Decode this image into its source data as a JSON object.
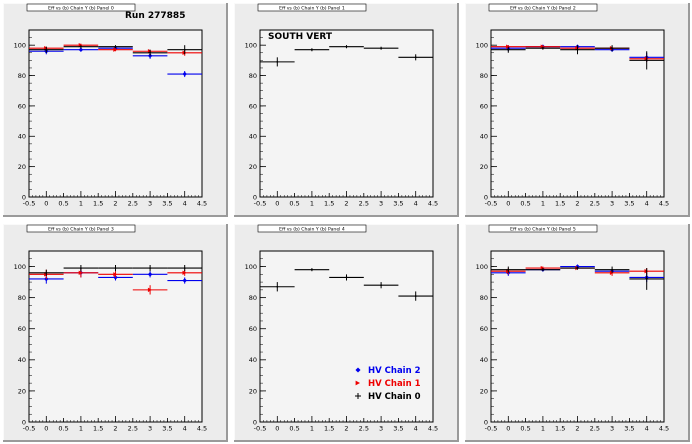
{
  "colors": {
    "background": "#ffffff",
    "pad_fill": "#ececec",
    "frame_fill": "#f4f4f4",
    "hv_chain_2": "#0000ee",
    "hv_chain_1": "#ee0000",
    "hv_chain_0": "#000000"
  },
  "chart_data": [
    {
      "type": "scatter",
      "title_strip": "Eff vs (b) Chain Y (b) Panel 0",
      "annotation": "Run 277885",
      "xlim": [
        -0.5,
        4.5
      ],
      "ylim": [
        0,
        110
      ],
      "xticks": [
        -0.5,
        0,
        0.5,
        1,
        1.5,
        2,
        2.5,
        3,
        3.5,
        4,
        4.5
      ],
      "yticks": [
        0,
        20,
        40,
        60,
        80,
        100
      ],
      "grid": false,
      "series": [
        {
          "x": [
            0,
            1,
            2,
            3,
            4
          ],
          "y": [
            96,
            97,
            98,
            93,
            81
          ],
          "yerr": [
            2,
            1,
            1,
            2,
            2
          ]
        },
        {
          "x": [
            0,
            1,
            2,
            3,
            4
          ],
          "y": [
            98,
            100,
            97,
            96,
            95
          ],
          "yerr": [
            1,
            1,
            1,
            1,
            2
          ]
        },
        {
          "x": [
            0,
            1,
            2,
            3,
            4
          ],
          "y": [
            97,
            99,
            99,
            95,
            97
          ],
          "yerr": [
            2,
            1,
            1,
            2,
            3
          ]
        }
      ]
    },
    {
      "type": "scatter",
      "title_strip": "Eff vs (b) Chain Y (b) Panel 1",
      "annotation": "SOUTH VERT",
      "xlim": [
        -0.5,
        4.5
      ],
      "ylim": [
        0,
        110
      ],
      "xticks": [
        -0.5,
        0,
        0.5,
        1,
        1.5,
        2,
        2.5,
        3,
        3.5,
        4,
        4.5
      ],
      "yticks": [
        0,
        20,
        40,
        60,
        80,
        100
      ],
      "grid": false,
      "series": [
        {
          "x": [
            0,
            1,
            2,
            3,
            4
          ],
          "y": [
            89,
            97,
            99,
            98,
            92
          ],
          "yerr": [
            3,
            1,
            1,
            1,
            2
          ]
        }
      ]
    },
    {
      "type": "scatter",
      "title_strip": "Eff vs (b) Chain Y (b) Panel 2",
      "annotation": "",
      "xlim": [
        -0.5,
        4.5
      ],
      "ylim": [
        0,
        110
      ],
      "xticks": [
        -0.5,
        0,
        0.5,
        1,
        1.5,
        2,
        2.5,
        3,
        3.5,
        4,
        4.5
      ],
      "yticks": [
        0,
        20,
        40,
        60,
        80,
        100
      ],
      "grid": false,
      "series": [
        {
          "x": [
            0,
            1,
            2,
            3,
            4
          ],
          "y": [
            98,
            99,
            99,
            97,
            92
          ],
          "yerr": [
            2,
            1,
            1,
            1,
            3
          ]
        },
        {
          "x": [
            0,
            1,
            2,
            3,
            4
          ],
          "y": [
            99,
            99,
            98,
            98,
            91
          ],
          "yerr": [
            1,
            1,
            1,
            1,
            2
          ]
        },
        {
          "x": [
            0,
            1,
            2,
            3,
            4
          ],
          "y": [
            97,
            98,
            97,
            98,
            90
          ],
          "yerr": [
            2,
            1,
            3,
            2,
            6
          ]
        }
      ]
    },
    {
      "type": "scatter",
      "title_strip": "Eff vs (b) Chain Y (b) Panel 3",
      "annotation": "",
      "xlim": [
        -0.5,
        4.5
      ],
      "ylim": [
        0,
        110
      ],
      "xticks": [
        -0.5,
        0,
        0.5,
        1,
        1.5,
        2,
        2.5,
        3,
        3.5,
        4,
        4.5
      ],
      "yticks": [
        0,
        20,
        40,
        60,
        80,
        100
      ],
      "grid": false,
      "series": [
        {
          "x": [
            0,
            1,
            2,
            3,
            4
          ],
          "y": [
            92,
            96,
            93,
            95,
            91
          ],
          "yerr": [
            3,
            3,
            2,
            2,
            2
          ]
        },
        {
          "x": [
            0,
            1,
            2,
            3,
            4
          ],
          "y": [
            95,
            96,
            95,
            85,
            96
          ],
          "yerr": [
            3,
            3,
            2,
            3,
            2
          ]
        },
        {
          "x": [
            0,
            1,
            2,
            3,
            4
          ],
          "y": [
            96,
            99,
            99,
            99,
            99
          ],
          "yerr": [
            2,
            2,
            2,
            2,
            2
          ]
        }
      ]
    },
    {
      "type": "scatter",
      "title_strip": "Eff vs (b) Chain Y (b) Panel 4",
      "annotation": "",
      "xlim": [
        -0.5,
        4.5
      ],
      "ylim": [
        0,
        110
      ],
      "xticks": [
        -0.5,
        0,
        0.5,
        1,
        1.5,
        2,
        2.5,
        3,
        3.5,
        4,
        4.5
      ],
      "yticks": [
        0,
        20,
        40,
        60,
        80,
        100
      ],
      "grid": false,
      "legend": {
        "placement": "bottom-right",
        "entries": [
          "HV Chain 2",
          "HV Chain 1",
          "HV Chain 0"
        ]
      },
      "series": [
        {
          "x": [
            0,
            1,
            2,
            3,
            4
          ],
          "y": [
            87,
            98,
            93,
            88,
            81
          ],
          "yerr": [
            3,
            1,
            2,
            2,
            3
          ]
        }
      ]
    },
    {
      "type": "scatter",
      "title_strip": "Eff vs (b) Chain Y (b) Panel 5",
      "annotation": "",
      "xlim": [
        -0.5,
        4.5
      ],
      "ylim": [
        0,
        110
      ],
      "xticks": [
        -0.5,
        0,
        0.5,
        1,
        1.5,
        2,
        2.5,
        3,
        3.5,
        4,
        4.5
      ],
      "yticks": [
        0,
        20,
        40,
        60,
        80,
        100
      ],
      "grid": false,
      "series": [
        {
          "x": [
            0,
            1,
            2,
            3,
            4
          ],
          "y": [
            96,
            98,
            100,
            97,
            93
          ],
          "yerr": [
            2,
            1,
            1,
            1,
            3
          ]
        },
        {
          "x": [
            0,
            1,
            2,
            3,
            4
          ],
          "y": [
            97,
            99,
            99,
            96,
            97
          ],
          "yerr": [
            2,
            1,
            1,
            2,
            2
          ]
        },
        {
          "x": [
            0,
            1,
            2,
            3,
            4
          ],
          "y": [
            98,
            98,
            99,
            98,
            92
          ],
          "yerr": [
            2,
            1,
            1,
            2,
            7
          ]
        }
      ]
    }
  ]
}
